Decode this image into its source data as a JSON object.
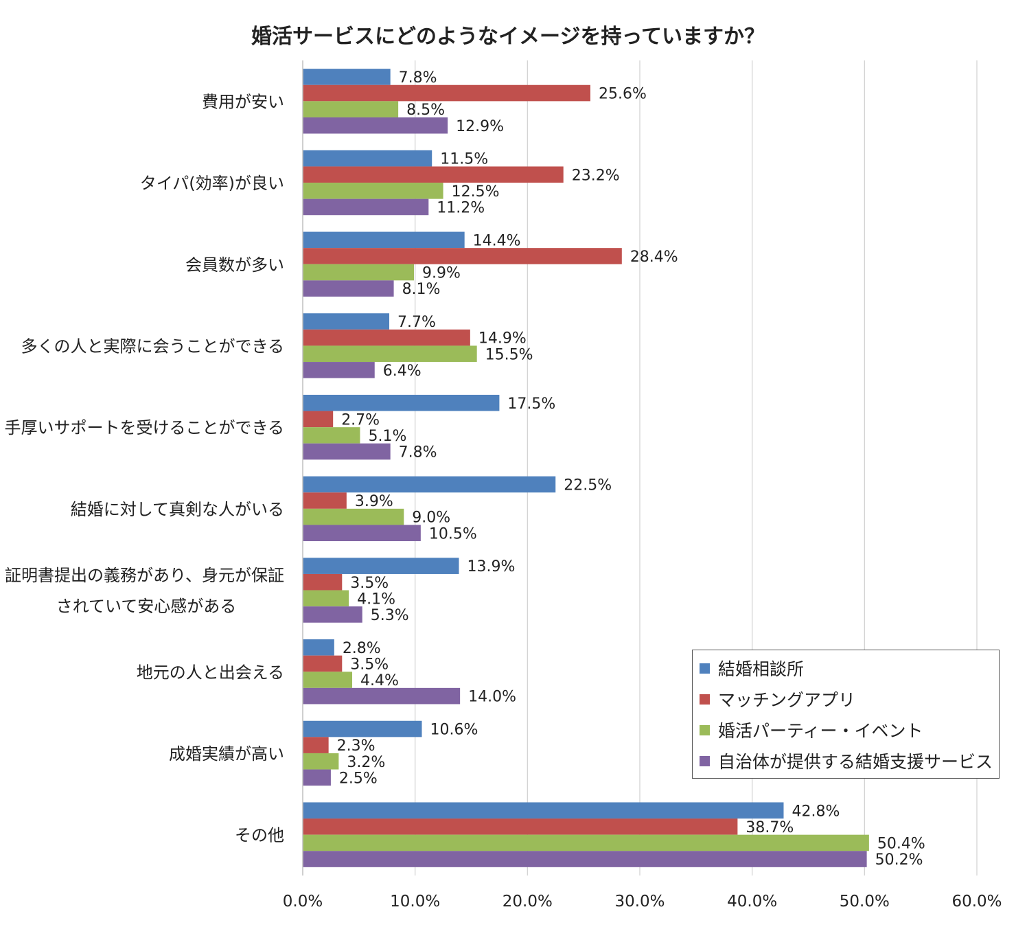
{
  "chart_data": {
    "type": "bar",
    "orientation": "horizontal",
    "title": "婚活サービスにどのようなイメージを持っていますか？",
    "xlabel": "",
    "ylabel": "",
    "xlim": [
      0,
      60
    ],
    "grid": true,
    "legend_position": "bottom-right",
    "ticks": [
      "0.0%",
      "10.0%",
      "20.0%",
      "30.0%",
      "40.0%",
      "50.0%",
      "60.0%"
    ],
    "tick_values": [
      0,
      10,
      20,
      30,
      40,
      50,
      60
    ],
    "categories": [
      [
        "費用が安い"
      ],
      [
        "タイパ(効率)が良い"
      ],
      [
        "会員数が多い"
      ],
      [
        "多くの人と実際に会うことができる"
      ],
      [
        "手厚いサポートを受けることができる"
      ],
      [
        "結婚に対して真剣な人がいる"
      ],
      [
        "証明書提出の義務があり、身元が保証",
        "されていて安心感がある"
      ],
      [
        "地元の人と出会える"
      ],
      [
        "成婚実績が高い"
      ],
      [
        "その他"
      ]
    ],
    "series": [
      {
        "name": "結婚相談所",
        "color": "#4F81BD",
        "values": [
          7.8,
          11.5,
          14.4,
          7.7,
          17.5,
          22.5,
          13.9,
          2.8,
          10.6,
          42.8
        ],
        "labels": [
          "7.8%",
          "11.5%",
          "14.4%",
          "7.7%",
          "17.5%",
          "22.5%",
          "13.9%",
          "2.8%",
          "10.6%",
          "42.8%"
        ]
      },
      {
        "name": "マッチングアプリ",
        "color": "#C0504D",
        "values": [
          25.6,
          23.2,
          28.4,
          14.9,
          2.7,
          3.9,
          3.5,
          3.5,
          2.3,
          38.7
        ],
        "labels": [
          "25.6%",
          "23.2%",
          "28.4%",
          "14.9%",
          "2.7%",
          "3.9%",
          "3.5%",
          "3.5%",
          "2.3%",
          "38.7%"
        ]
      },
      {
        "name": "婚活パーティー・イベント",
        "color": "#9BBB59",
        "values": [
          8.5,
          12.5,
          9.9,
          15.5,
          5.1,
          9.0,
          4.1,
          4.4,
          3.2,
          50.4
        ],
        "labels": [
          "8.5%",
          "12.5%",
          "9.9%",
          "15.5%",
          "5.1%",
          "9.0%",
          "4.1%",
          "4.4%",
          "3.2%",
          "50.4%"
        ]
      },
      {
        "name": "自治体が提供する結婚支援サービス",
        "color": "#8064A2",
        "values": [
          12.9,
          11.2,
          8.1,
          6.4,
          7.8,
          10.5,
          5.3,
          14.0,
          2.5,
          50.2
        ],
        "labels": [
          "12.9%",
          "11.2%",
          "8.1%",
          "6.4%",
          "7.8%",
          "10.5%",
          "5.3%",
          "14.0%",
          "2.5%",
          "50.2%"
        ]
      }
    ]
  }
}
